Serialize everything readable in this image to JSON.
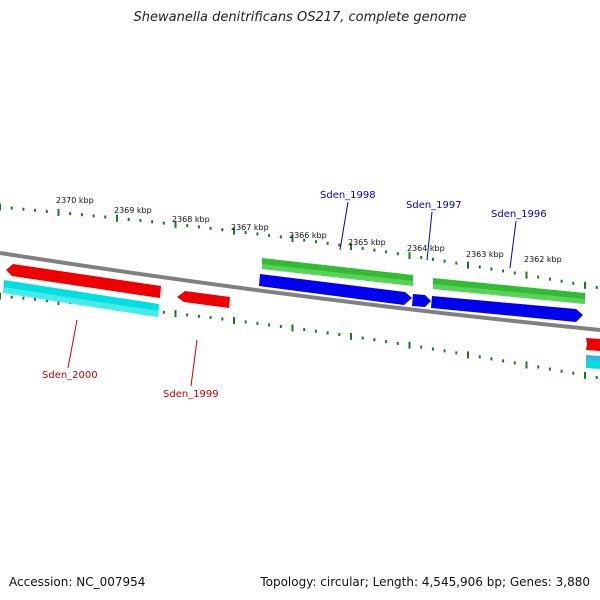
{
  "title": "Shewanella denitrificans OS217, complete genome",
  "footer": {
    "accession_label": "Accession:",
    "accession": "NC_007954",
    "topology_label": "Topology:",
    "topology": "circular",
    "length_label": "Length:",
    "length": "4,545,906 bp",
    "genes_label": "Genes:",
    "genes": "3,880"
  },
  "scale_labels": [
    "2370 kbp",
    "2369 kbp",
    "2368 kbp",
    "2367 kbp",
    "2366 kbp",
    "2365 kbp",
    "2364 kbp",
    "2363 kbp",
    "2362 kbp"
  ],
  "genes": [
    {
      "name": "Sden_1998",
      "color": "#0000cc",
      "strand": "forward"
    },
    {
      "name": "Sden_1997",
      "color": "#0000cc",
      "strand": "forward"
    },
    {
      "name": "Sden_1996",
      "color": "#0000cc",
      "strand": "forward"
    },
    {
      "name": "Sden_2000",
      "color": "#cc0000",
      "strand": "reverse"
    },
    {
      "name": "Sden_1999",
      "color": "#cc0000",
      "strand": "reverse"
    }
  ],
  "colors": {
    "forward_gene": "#0000ee",
    "reverse_gene": "#ee0000",
    "forward_cds_track": "#33bb33",
    "reverse_cds_track": "#00e0e0",
    "backbone": "#808080",
    "tick": "#1a7a1a"
  }
}
